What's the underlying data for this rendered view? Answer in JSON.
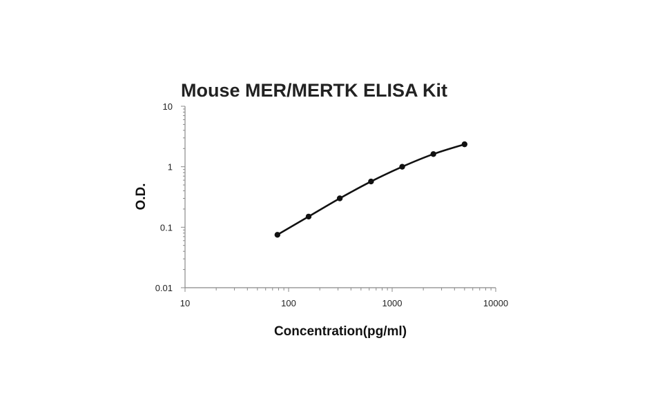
{
  "chart_data": {
    "type": "line",
    "title": "Mouse MER/MERTK ELISA Kit",
    "xlabel": "Concentration(pg/ml)",
    "ylabel": "O.D.",
    "x_scale": "log",
    "y_scale": "log",
    "xlim": [
      10,
      10000
    ],
    "ylim": [
      0.01,
      10
    ],
    "x_ticks": [
      "10",
      "100",
      "1000",
      "10000"
    ],
    "y_ticks": [
      "0.01",
      "0.1",
      "1",
      "10"
    ],
    "grid": false,
    "legend": "none",
    "series": [
      {
        "x": [
          78,
          156,
          312,
          625,
          1250,
          2500,
          5000
        ],
        "y": [
          0.075,
          0.15,
          0.3,
          0.57,
          1.0,
          1.62,
          2.35
        ]
      }
    ],
    "colors": {
      "line": "#111111",
      "axis": "#888888"
    }
  }
}
